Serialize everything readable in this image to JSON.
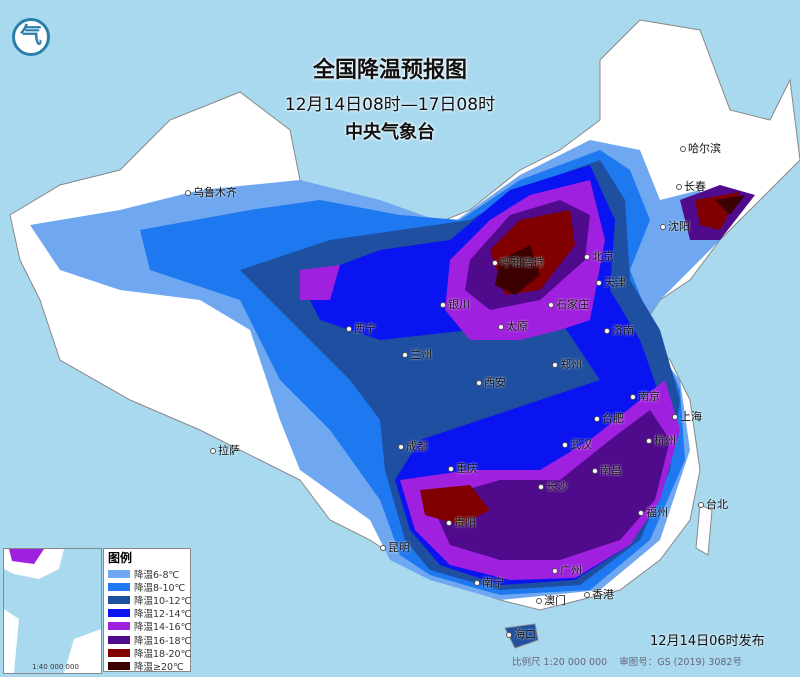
{
  "header": {
    "title": "全国降温预报图",
    "period": "12月14日08时—17日08时",
    "agency": "中央气象台"
  },
  "legend": {
    "title": "图例",
    "items": [
      {
        "label": "降温6-8℃",
        "color": "#6fa8f0"
      },
      {
        "label": "降温8-10℃",
        "color": "#1e78f0"
      },
      {
        "label": "降温10-12℃",
        "color": "#1e4fa0"
      },
      {
        "label": "降温12-14℃",
        "color": "#0a14f0"
      },
      {
        "label": "降温14-16℃",
        "color": "#a020e0"
      },
      {
        "label": "降温16-18℃",
        "color": "#500a8c"
      },
      {
        "label": "降温18-20℃",
        "color": "#800000"
      },
      {
        "label": "降温≥20℃",
        "color": "#3c0000"
      }
    ]
  },
  "cities": [
    "乌鲁木齐",
    "哈尔滨",
    "长春",
    "沈阳",
    "北京",
    "天津",
    "呼和浩特",
    "石家庄",
    "太原",
    "济南",
    "银川",
    "兰州",
    "西宁",
    "西安",
    "郑州",
    "合肥",
    "南京",
    "上海",
    "杭州",
    "武汉",
    "长沙",
    "南昌",
    "福州",
    "台北",
    "成都",
    "重庆",
    "贵阳",
    "昆明",
    "拉萨",
    "南宁",
    "广州",
    "香港",
    "澳门",
    "海口"
  ],
  "footer": {
    "issued": "12月14日06时发布",
    "scale": "比例尺 1:20 000 000",
    "map_no": "审图号：GS (2019) 3082号"
  },
  "inset": {
    "scale": "1:40 000 000"
  },
  "logo": {
    "text": "气"
  }
}
